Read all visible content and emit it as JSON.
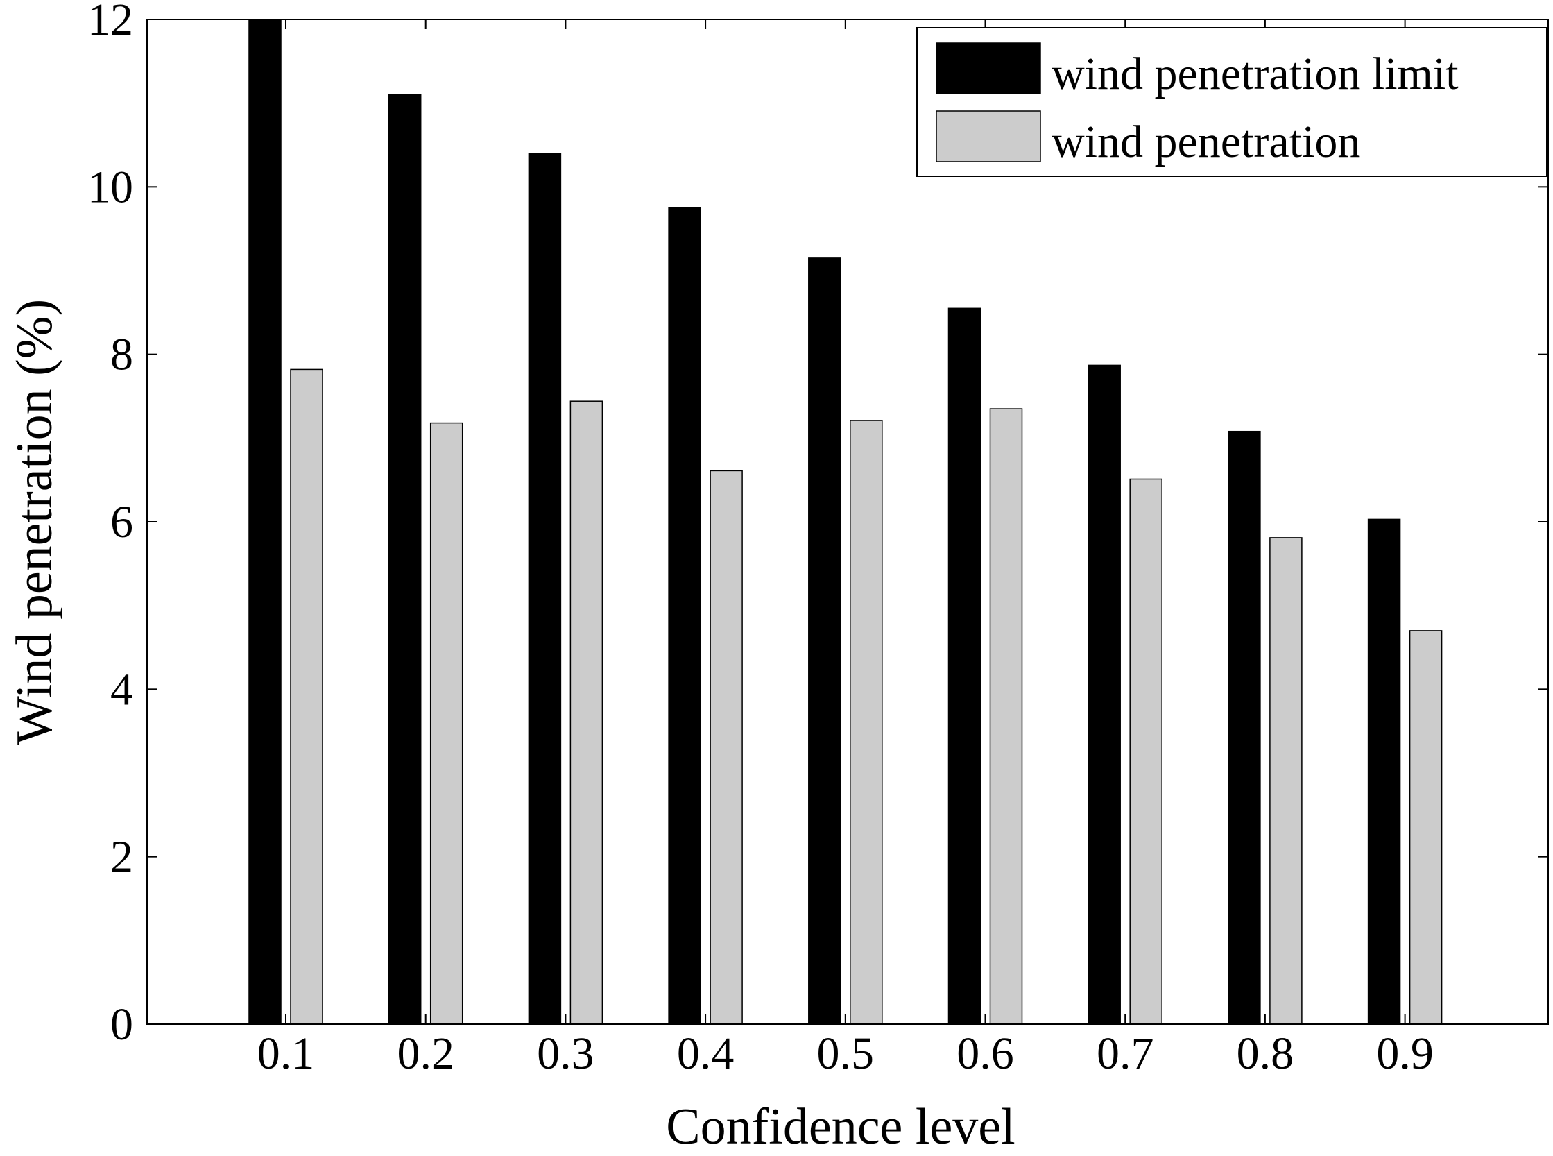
{
  "chart_data": {
    "type": "bar",
    "xlabel": "Confidence level",
    "ylabel": "Wind penetration (%)",
    "categories": [
      "0.1",
      "0.2",
      "0.3",
      "0.4",
      "0.5",
      "0.6",
      "0.7",
      "0.8",
      "0.9"
    ],
    "ylim": [
      0,
      12
    ],
    "yticks": [
      "0",
      "2",
      "4",
      "6",
      "8",
      "10",
      "12"
    ],
    "grid": false,
    "legend_position": "top-right",
    "series": [
      {
        "name": "wind penetration limit",
        "color": "#000000",
        "values": [
          12.0,
          11.1,
          10.4,
          9.75,
          9.15,
          8.55,
          7.87,
          7.08,
          6.03
        ]
      },
      {
        "name": "wind penetration",
        "color": "#cccccc",
        "values": [
          7.82,
          7.18,
          7.44,
          6.61,
          7.21,
          7.35,
          6.51,
          5.81,
          4.7
        ]
      }
    ]
  }
}
